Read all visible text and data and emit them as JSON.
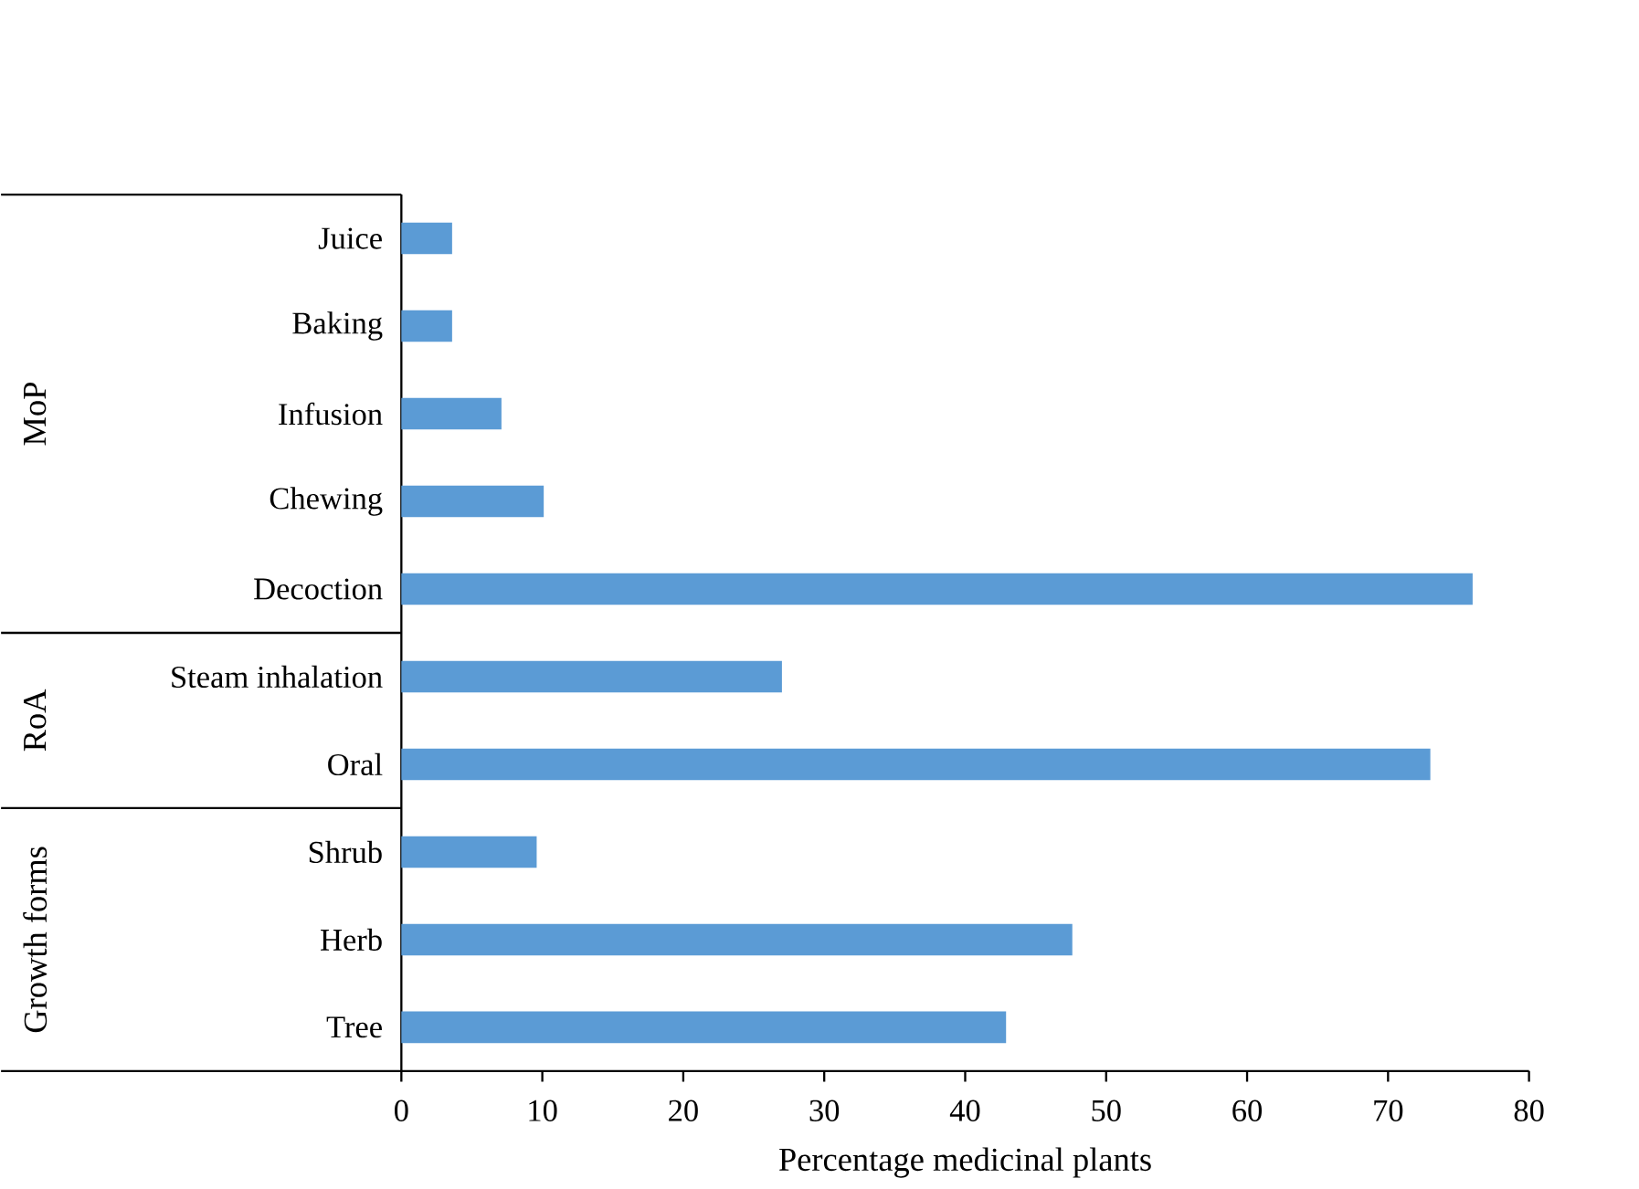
{
  "chart_data": {
    "type": "bar",
    "orientation": "horizontal",
    "xlabel": "Percentage  medicinal plants",
    "categories": [
      "Juice",
      "Baking",
      "Infusion",
      "Chewing",
      "Decoction",
      "Steam inhalation",
      "Oral",
      "Shrub",
      "Herb",
      "Tree"
    ],
    "values": [
      3.6,
      3.6,
      7.1,
      10.1,
      76,
      27,
      73,
      9.6,
      47.6,
      42.9
    ],
    "color": "#5b9bd5",
    "xlim": [
      0,
      80
    ],
    "xticks": [
      0,
      10,
      20,
      30,
      40,
      50,
      60,
      70,
      80
    ],
    "annotations": [
      "MoP",
      "RoA",
      "Growth forms"
    ]
  }
}
